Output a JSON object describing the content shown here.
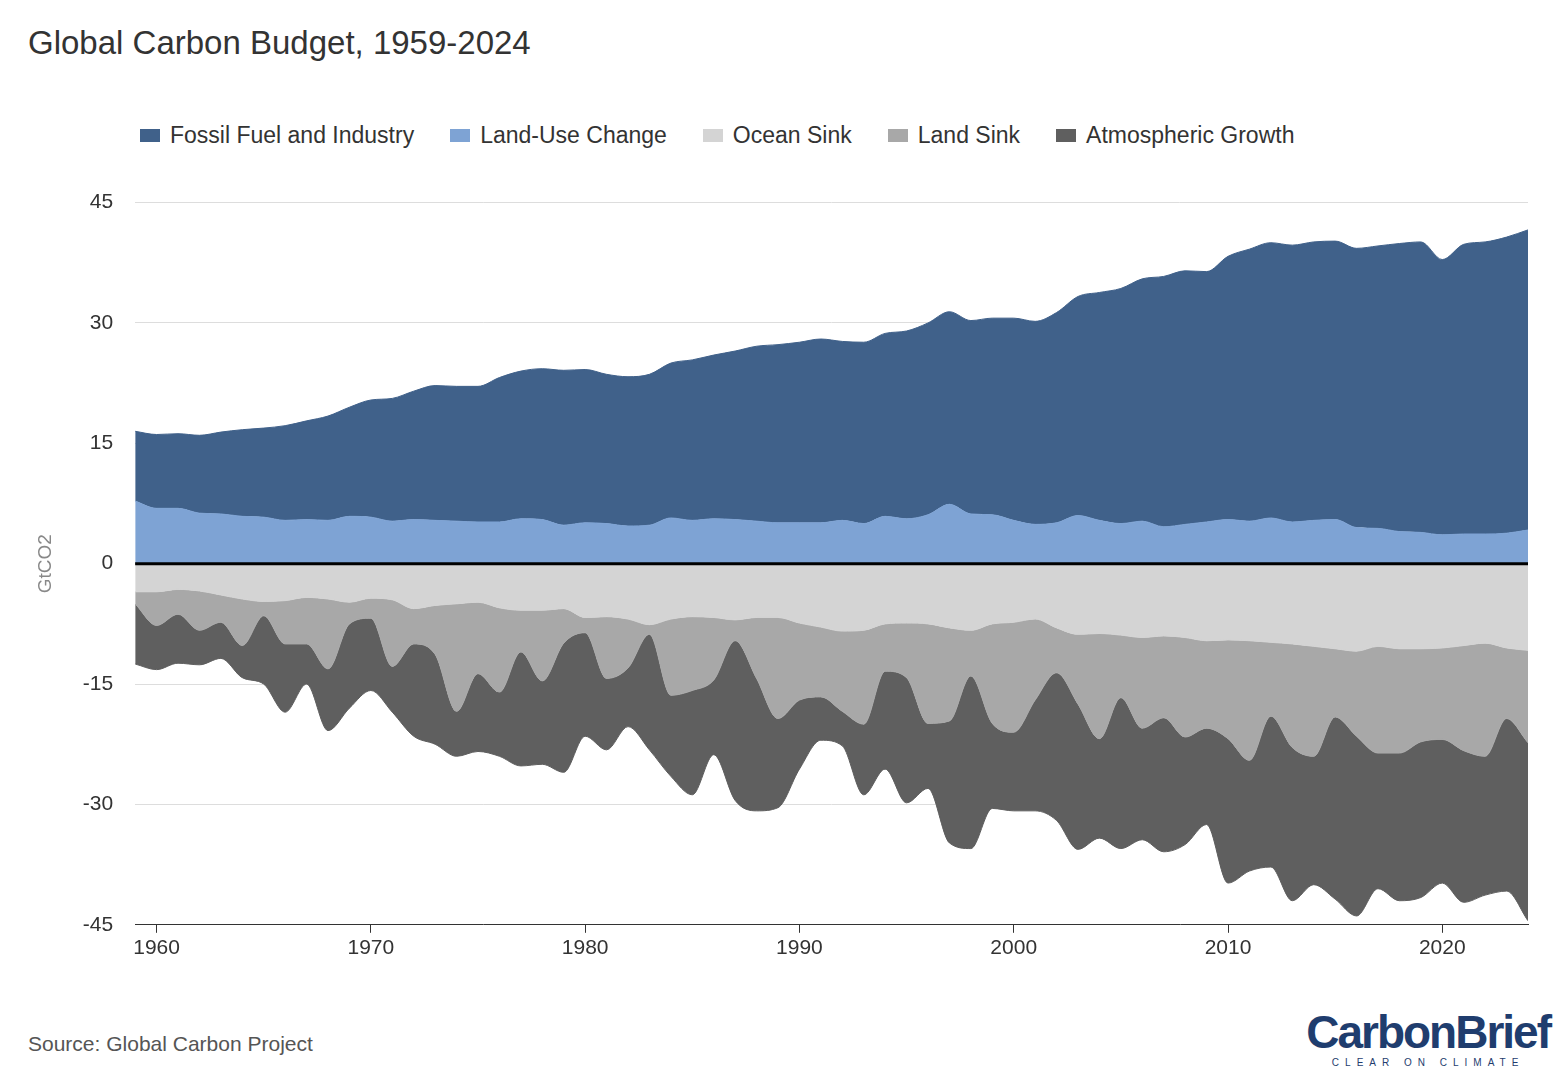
{
  "chart_data": {
    "type": "area",
    "title": "Global Carbon Budget, 1959-2024",
    "y_label": "GtCO2",
    "source": "Source: Global Carbon Project",
    "logo": "CarbonBrief",
    "logo_tagline": "CLEAR ON CLIMATE",
    "stacked": true,
    "grid": true,
    "legend": "top",
    "x": [
      1959,
      1960,
      1961,
      1962,
      1963,
      1964,
      1965,
      1966,
      1967,
      1968,
      1969,
      1970,
      1971,
      1972,
      1973,
      1974,
      1975,
      1976,
      1977,
      1978,
      1979,
      1980,
      1981,
      1982,
      1983,
      1984,
      1985,
      1986,
      1987,
      1988,
      1989,
      1990,
      1991,
      1992,
      1993,
      1994,
      1995,
      1996,
      1997,
      1998,
      1999,
      2000,
      2001,
      2002,
      2003,
      2004,
      2005,
      2006,
      2007,
      2008,
      2009,
      2010,
      2011,
      2012,
      2013,
      2014,
      2015,
      2016,
      2017,
      2018,
      2019,
      2020,
      2021,
      2022,
      2023,
      2024
    ],
    "xlim": [
      1959,
      2024
    ],
    "xticks": [
      1960,
      1970,
      1980,
      1990,
      2000,
      2010,
      2020
    ],
    "ylim": [
      -45,
      45
    ],
    "yticks": [
      -45,
      -30,
      -15,
      0,
      15,
      30,
      45
    ],
    "series": [
      {
        "name": "Fossil Fuel and Industry",
        "color": "#40618a",
        "values": [
          8.7,
          9.2,
          9.3,
          9.7,
          10.2,
          10.8,
          11.1,
          11.8,
          12.3,
          13.0,
          13.6,
          14.6,
          15.3,
          16.0,
          16.8,
          16.8,
          16.9,
          18.0,
          18.4,
          18.8,
          19.3,
          19.1,
          18.6,
          18.6,
          18.8,
          19.3,
          20.0,
          20.4,
          21.0,
          21.8,
          22.2,
          22.5,
          22.9,
          22.3,
          22.6,
          22.8,
          23.4,
          23.9,
          24.0,
          24.1,
          24.5,
          25.2,
          25.3,
          26.2,
          27.3,
          28.4,
          29.3,
          30.2,
          31.2,
          31.6,
          31.2,
          32.8,
          33.9,
          34.3,
          34.5,
          34.7,
          34.7,
          34.8,
          35.2,
          35.9,
          36.2,
          34.3,
          36.1,
          36.4,
          36.9,
          37.4
        ]
      },
      {
        "name": "Land-Use Change",
        "color": "#7ea3d4",
        "values": [
          7.8,
          6.9,
          6.9,
          6.3,
          6.2,
          5.9,
          5.8,
          5.4,
          5.5,
          5.4,
          5.9,
          5.8,
          5.3,
          5.5,
          5.4,
          5.3,
          5.2,
          5.2,
          5.6,
          5.5,
          4.8,
          5.1,
          5.0,
          4.7,
          4.8,
          5.7,
          5.4,
          5.6,
          5.5,
          5.3,
          5.1,
          5.1,
          5.1,
          5.4,
          5.0,
          5.9,
          5.6,
          6.1,
          7.4,
          6.2,
          6.1,
          5.4,
          4.9,
          5.1,
          6.0,
          5.4,
          5.0,
          5.3,
          4.6,
          4.9,
          5.2,
          5.5,
          5.3,
          5.7,
          5.2,
          5.4,
          5.5,
          4.5,
          4.4,
          4.0,
          3.9,
          3.6,
          3.7,
          3.7,
          3.8,
          4.2
        ]
      },
      {
        "name": "Ocean Sink",
        "color": "#d4d4d4",
        "values": [
          -3.5,
          -3.5,
          -3.2,
          -3.4,
          -3.9,
          -4.4,
          -4.7,
          -4.6,
          -4.2,
          -4.4,
          -4.8,
          -4.3,
          -4.5,
          -5.6,
          -5.2,
          -5.0,
          -4.8,
          -5.5,
          -5.8,
          -5.8,
          -5.6,
          -6.7,
          -6.6,
          -6.9,
          -7.6,
          -6.9,
          -6.6,
          -6.7,
          -7.0,
          -6.7,
          -6.7,
          -7.4,
          -7.9,
          -8.4,
          -8.3,
          -7.5,
          -7.4,
          -7.5,
          -8.0,
          -8.3,
          -7.5,
          -7.3,
          -6.9,
          -8.0,
          -8.8,
          -8.7,
          -8.9,
          -9.2,
          -9.0,
          -9.2,
          -9.6,
          -9.5,
          -9.6,
          -9.8,
          -10.0,
          -10.3,
          -10.6,
          -10.9,
          -10.3,
          -10.6,
          -10.6,
          -10.5,
          -10.2,
          -9.9,
          -10.5,
          -10.8
        ]
      },
      {
        "name": "Land Sink",
        "color": "#a8a8a8",
        "values": [
          -1.5,
          -4.2,
          -3.1,
          -4.9,
          -3.4,
          -5.8,
          -1.8,
          -5.4,
          -5.8,
          -8.7,
          -2.7,
          -2.5,
          -8.3,
          -4.4,
          -6.1,
          -13.4,
          -8.9,
          -10.5,
          -5.2,
          -8.8,
          -4.3,
          -1.9,
          -7.7,
          -6.1,
          -1.2,
          -9.5,
          -9.2,
          -7.8,
          -2.6,
          -7.6,
          -12.6,
          -9.6,
          -8.7,
          -10.0,
          -11.7,
          -5.9,
          -6.8,
          -12.4,
          -11.6,
          -5.7,
          -12.4,
          -13.7,
          -10.1,
          -5.6,
          -8.7,
          -13.1,
          -7.8,
          -11.3,
          -10.2,
          -12.4,
          -10.9,
          -12.3,
          -14.9,
          -9.2,
          -12.9,
          -13.7,
          -8.5,
          -10.6,
          -13.3,
          -13.0,
          -11.6,
          -11.4,
          -13.1,
          -14.1,
          -8.8,
          -11.5
        ]
      },
      {
        "name": "Atmospheric Growth",
        "color": "#5f5f5f",
        "values": [
          -7.5,
          -5.5,
          -6.1,
          -4.3,
          -4.5,
          -4.0,
          -8.5,
          -8.5,
          -5.0,
          -7.7,
          -10.5,
          -9.0,
          -5.7,
          -11.5,
          -11.2,
          -5.6,
          -9.7,
          -8.0,
          -14.2,
          -10.4,
          -16.1,
          -12.9,
          -8.9,
          -7.3,
          -14.4,
          -10.1,
          -13.0,
          -9.3,
          -19.9,
          -16.5,
          -11.1,
          -8.6,
          -5.4,
          -4.3,
          -8.8,
          -12.2,
          -15.6,
          -8.1,
          -15.2,
          -21.5,
          -10.6,
          -9.8,
          -13.8,
          -18.4,
          -18.1,
          -12.4,
          -18.8,
          -13.9,
          -16.7,
          -13.4,
          -12.0,
          -18.0,
          -13.8,
          -18.8,
          -19.1,
          -16.0,
          -22.7,
          -22.4,
          -16.9,
          -18.4,
          -19.4,
          -17.9,
          -18.9,
          -17.3,
          -21.5,
          -22.2
        ]
      }
    ]
  }
}
